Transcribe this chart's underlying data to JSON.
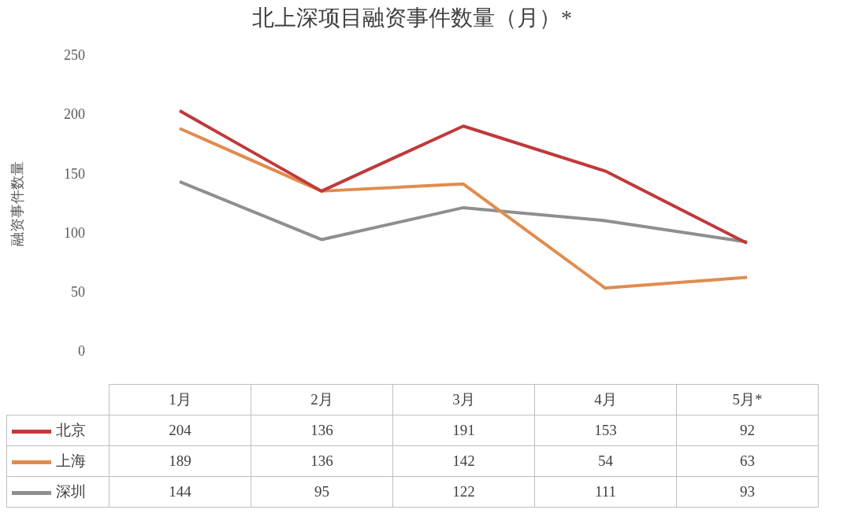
{
  "chart_data": {
    "type": "line",
    "title": "北上深项目融资事件数量（月）*",
    "ylabel": "融资事件数量",
    "categories": [
      "1月",
      "2月",
      "3月",
      "4月",
      "5月*"
    ],
    "series": [
      {
        "name": "北京",
        "color": "#c0393b",
        "values": [
          204,
          136,
          191,
          153,
          92
        ]
      },
      {
        "name": "上海",
        "color": "#e08c4e",
        "values": [
          189,
          136,
          142,
          54,
          63
        ]
      },
      {
        "name": "深圳",
        "color": "#8f8f8f",
        "values": [
          144,
          95,
          122,
          111,
          93
        ]
      }
    ],
    "ylim": [
      0,
      250
    ],
    "yticks": [
      0,
      50,
      100,
      150,
      200,
      250
    ],
    "grid": false,
    "legend": "bottom",
    "marker": "none",
    "line_style": "solid",
    "data_labels": true
  }
}
